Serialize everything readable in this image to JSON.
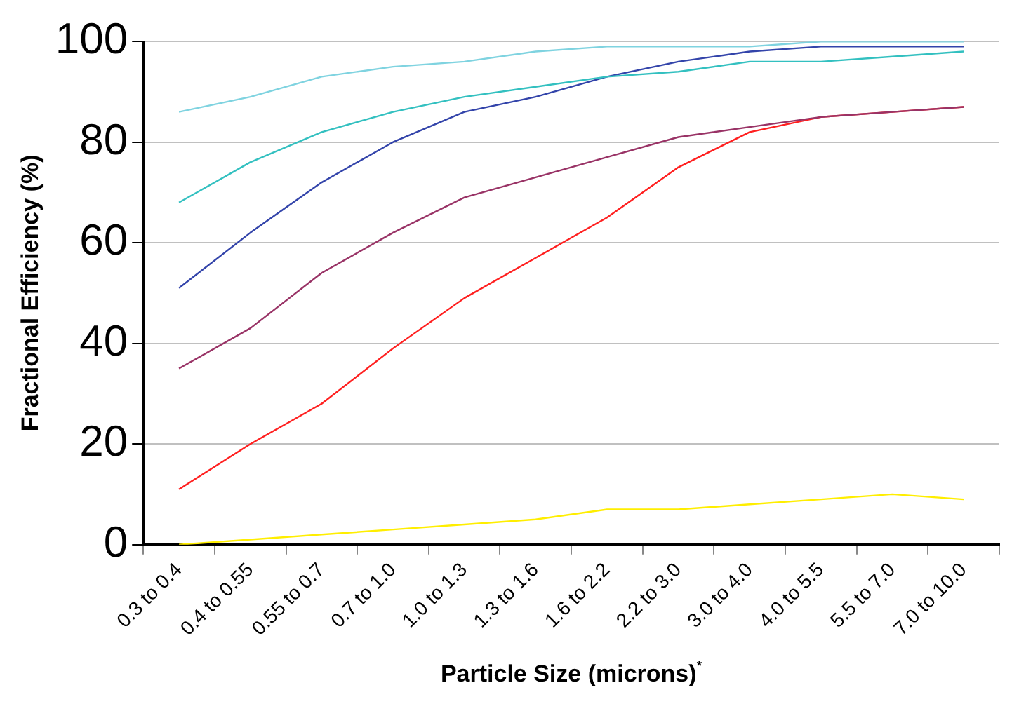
{
  "chart_data": {
    "type": "line",
    "xlabel": "Particle Size (microns)$^{*}$",
    "ylabel": "Fractional Efficiency (%)",
    "categories": [
      "0.3 to 0.4",
      "0.4 to 0.55",
      "0.55 to 0.7",
      "0.7 to 1.0",
      "1.0 to 1.3",
      "1.3 to 1.6",
      "1.6 to 2.2",
      "2.2 to 3.0",
      "3.0 to 4.0",
      "4.0 to 5.5",
      "5.5 to 7.0",
      "7.0 to 10.0"
    ],
    "series": [
      {
        "color": "#7fd3e0",
        "values": [
          86,
          89,
          93,
          95,
          96,
          98,
          99,
          99,
          99,
          100,
          100,
          100
        ]
      },
      {
        "color": "#33c0c0",
        "values": [
          68,
          76,
          82,
          86,
          89,
          91,
          93,
          94,
          96,
          96,
          97,
          98
        ]
      },
      {
        "color": "#3344aa",
        "values": [
          51,
          62,
          72,
          80,
          86,
          89,
          93,
          96,
          98,
          99,
          99,
          99
        ]
      },
      {
        "color": "#993366",
        "values": [
          35,
          43,
          54,
          62,
          69,
          73,
          77,
          81,
          83,
          85,
          86,
          87
        ]
      },
      {
        "color": "#ff2020",
        "values": [
          11,
          20,
          28,
          39,
          49,
          57,
          65,
          75,
          82,
          85,
          86,
          87
        ]
      },
      {
        "color": "#ffee00",
        "values": [
          0,
          1,
          2,
          3,
          4,
          5,
          7,
          7,
          8,
          9,
          10,
          9
        ]
      }
    ],
    "ylim": [
      0,
      100
    ],
    "yticks": [
      0,
      20,
      40,
      60,
      80,
      100
    ],
    "grid": "y",
    "legend": false,
    "marker": "none",
    "line_style": "solid"
  }
}
